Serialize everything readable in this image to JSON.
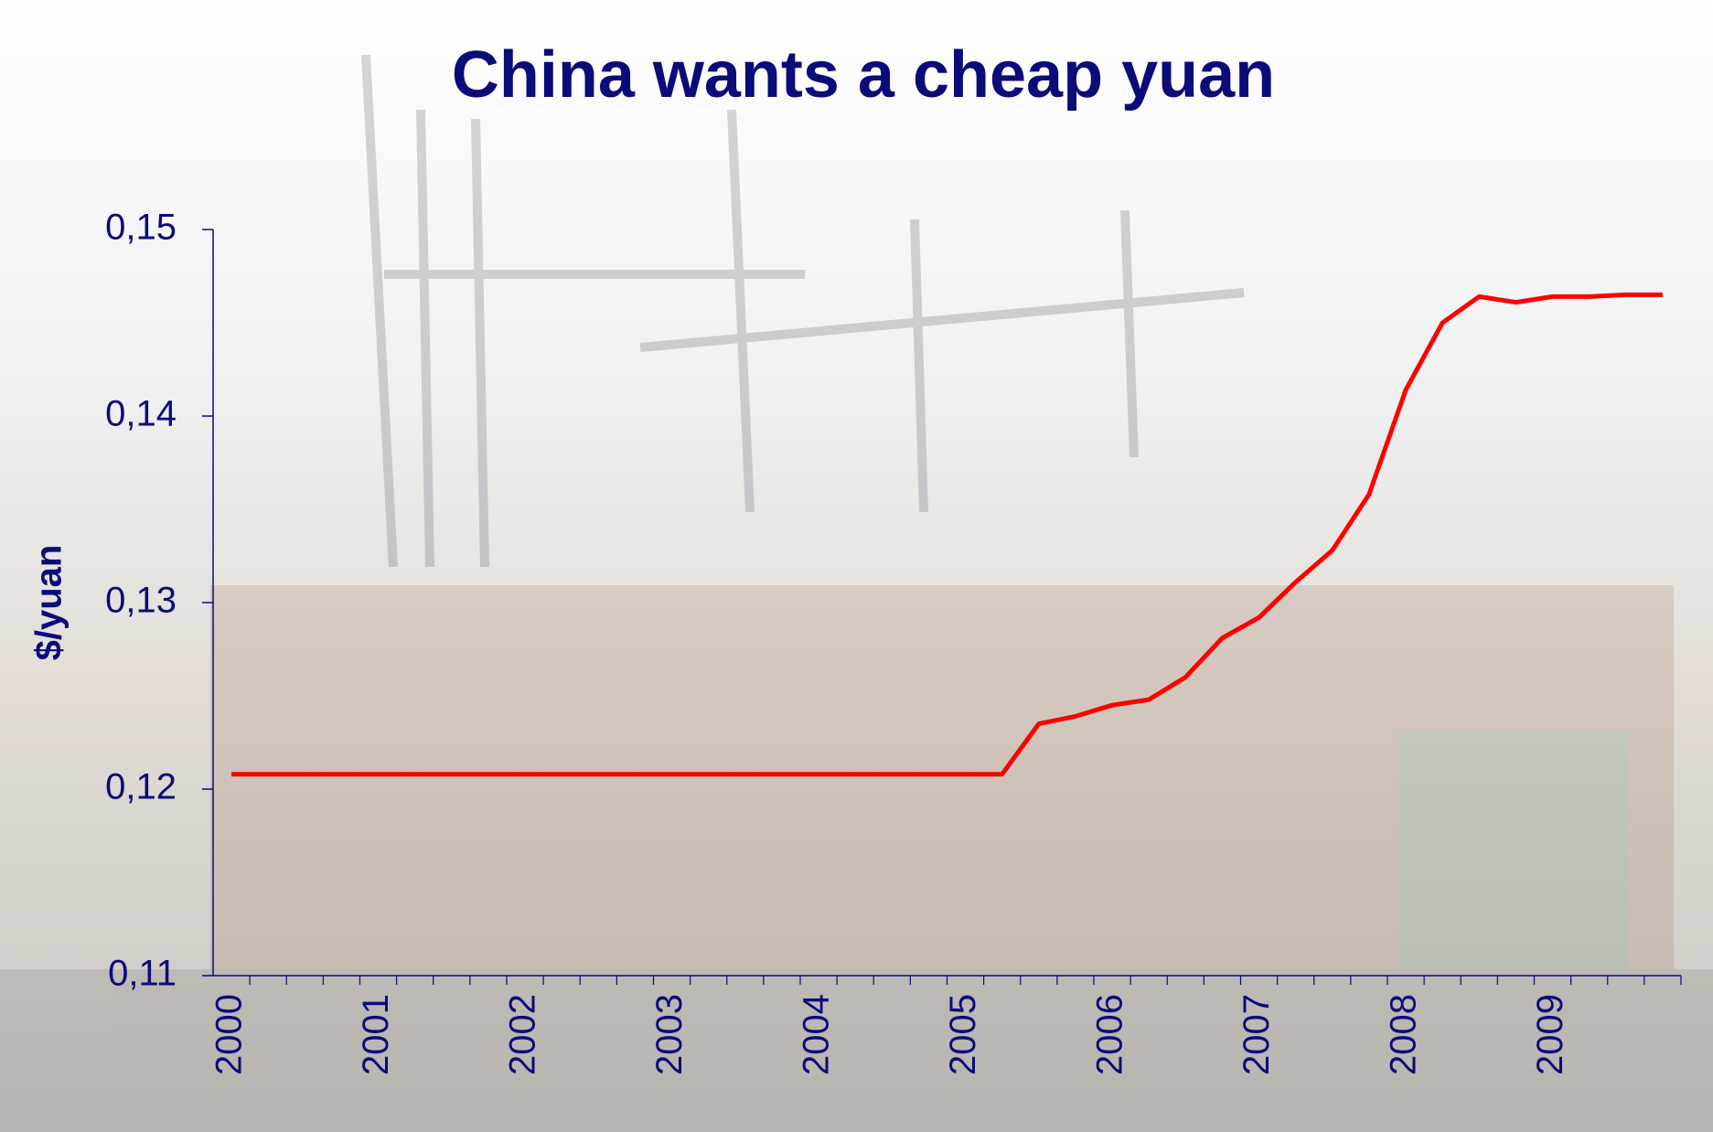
{
  "chart_data": {
    "type": "line",
    "title": "China wants a cheap yuan",
    "y_label": "$/yuan",
    "categories": [
      "2000",
      null,
      null,
      null,
      "2001",
      null,
      null,
      null,
      "2002",
      null,
      null,
      null,
      "2003",
      null,
      null,
      null,
      "2004",
      null,
      null,
      null,
      "2005",
      null,
      null,
      null,
      "2006",
      null,
      null,
      null,
      "2007",
      null,
      null,
      null,
      "2008",
      null,
      null,
      null,
      "2009",
      null,
      null,
      null
    ],
    "series": [
      {
        "name": "$/yuan",
        "color": "#ff0000",
        "values": [
          0.1208,
          0.1208,
          0.1208,
          0.1208,
          0.1208,
          0.1208,
          0.1208,
          0.1208,
          0.1208,
          0.1208,
          0.1208,
          0.1208,
          0.1208,
          0.1208,
          0.1208,
          0.1208,
          0.1208,
          0.1208,
          0.1208,
          0.1208,
          0.1208,
          0.1208,
          0.1235,
          0.1239,
          0.1245,
          0.1248,
          0.126,
          0.1281,
          0.1292,
          0.1311,
          0.1328,
          0.1358,
          0.1414,
          0.145,
          0.1464,
          0.1461,
          0.1464,
          0.1464,
          0.1465,
          0.1465
        ]
      }
    ],
    "ylim": [
      0.11,
      0.15
    ],
    "yticks": [
      {
        "value": 0.11,
        "label": "0,11"
      },
      {
        "value": 0.12,
        "label": "0,12"
      },
      {
        "value": 0.13,
        "label": "0,13"
      },
      {
        "value": 0.14,
        "label": "0,14"
      },
      {
        "value": 0.15,
        "label": "0,15"
      }
    ]
  }
}
